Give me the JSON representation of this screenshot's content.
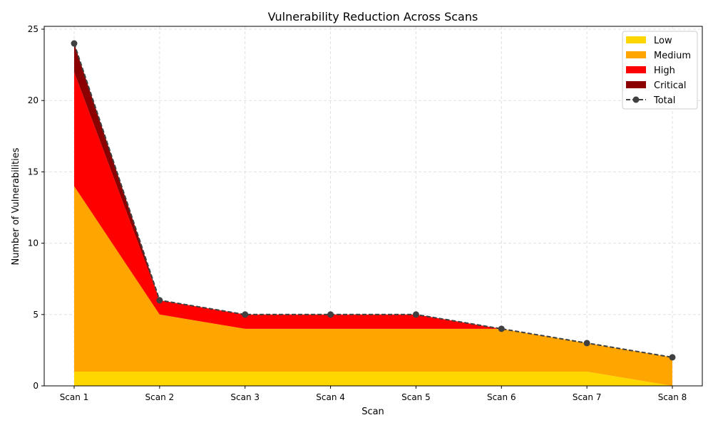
{
  "chart_data": {
    "type": "area",
    "stacked": true,
    "title": "Vulnerability Reduction Across Scans",
    "xlabel": "Scan",
    "ylabel": "Number of Vulnerabilities",
    "categories": [
      "Scan 1",
      "Scan 2",
      "Scan 3",
      "Scan 4",
      "Scan 5",
      "Scan 6",
      "Scan 7",
      "Scan 8"
    ],
    "ylim": [
      0,
      25.2
    ],
    "yticks": [
      0,
      5,
      10,
      15,
      20,
      25
    ],
    "grid": true,
    "legend_position": "top-right",
    "series": [
      {
        "name": "Low",
        "color": "#FFD700",
        "values": [
          1,
          1,
          1,
          1,
          1,
          1,
          1,
          0
        ]
      },
      {
        "name": "Medium",
        "color": "#FFA500",
        "values": [
          13,
          4,
          3,
          3,
          3,
          3,
          2,
          2
        ]
      },
      {
        "name": "High",
        "color": "#FF0000",
        "values": [
          8,
          1,
          1,
          1,
          1,
          0,
          0,
          0
        ]
      },
      {
        "name": "Critical",
        "color": "#8B0000",
        "values": [
          2,
          0,
          0,
          0,
          0,
          0,
          0,
          0
        ]
      }
    ],
    "total": {
      "name": "Total",
      "color": "#404040",
      "style": "dashed",
      "marker": "circle",
      "values": [
        24,
        6,
        5,
        5,
        5,
        4,
        3,
        2
      ]
    }
  }
}
